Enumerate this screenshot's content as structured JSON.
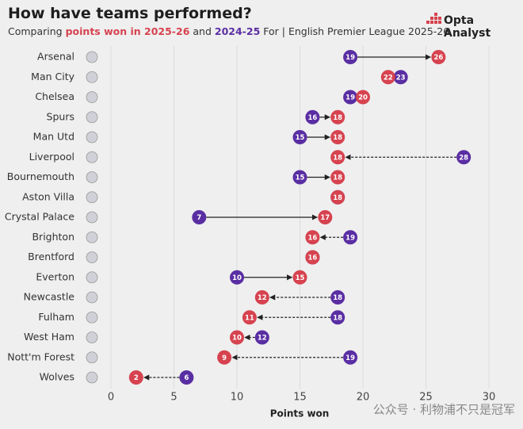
{
  "chart_data": {
    "type": "dumbbell",
    "title": "How have teams performed?",
    "subtitle_prefix": "Comparing",
    "subtitle_mid": "and",
    "subtitle_suffix": "For | English Premier League 2025-26",
    "brand": "Opta Analyst",
    "watermark": "公众号 · 利物浦不只是冠军",
    "categories": [
      "Arsenal",
      "Man City",
      "Chelsea",
      "Spurs",
      "Man Utd",
      "Liverpool",
      "Bournemouth",
      "Aston Villa",
      "Crystal Palace",
      "Brighton",
      "Brentford",
      "Everton",
      "Newcastle",
      "Fulham",
      "West Ham",
      "Nott'm Forest",
      "Wolves"
    ],
    "series": [
      {
        "name": "points won in 2025-26",
        "color": "#d6434f",
        "values": [
          26,
          22,
          20,
          18,
          18,
          18,
          18,
          18,
          17,
          16,
          16,
          15,
          12,
          11,
          10,
          9,
          2
        ]
      },
      {
        "name": "2024-25",
        "color": "#5a2ea3",
        "values": [
          19,
          23,
          19,
          16,
          15,
          28,
          15,
          18,
          7,
          19,
          16,
          10,
          18,
          18,
          12,
          19,
          6
        ]
      }
    ],
    "xlim": [
      0,
      30
    ],
    "xticks": [
      0,
      5,
      10,
      15,
      20,
      25,
      30
    ],
    "xlabel": "Points won",
    "grid": true
  }
}
